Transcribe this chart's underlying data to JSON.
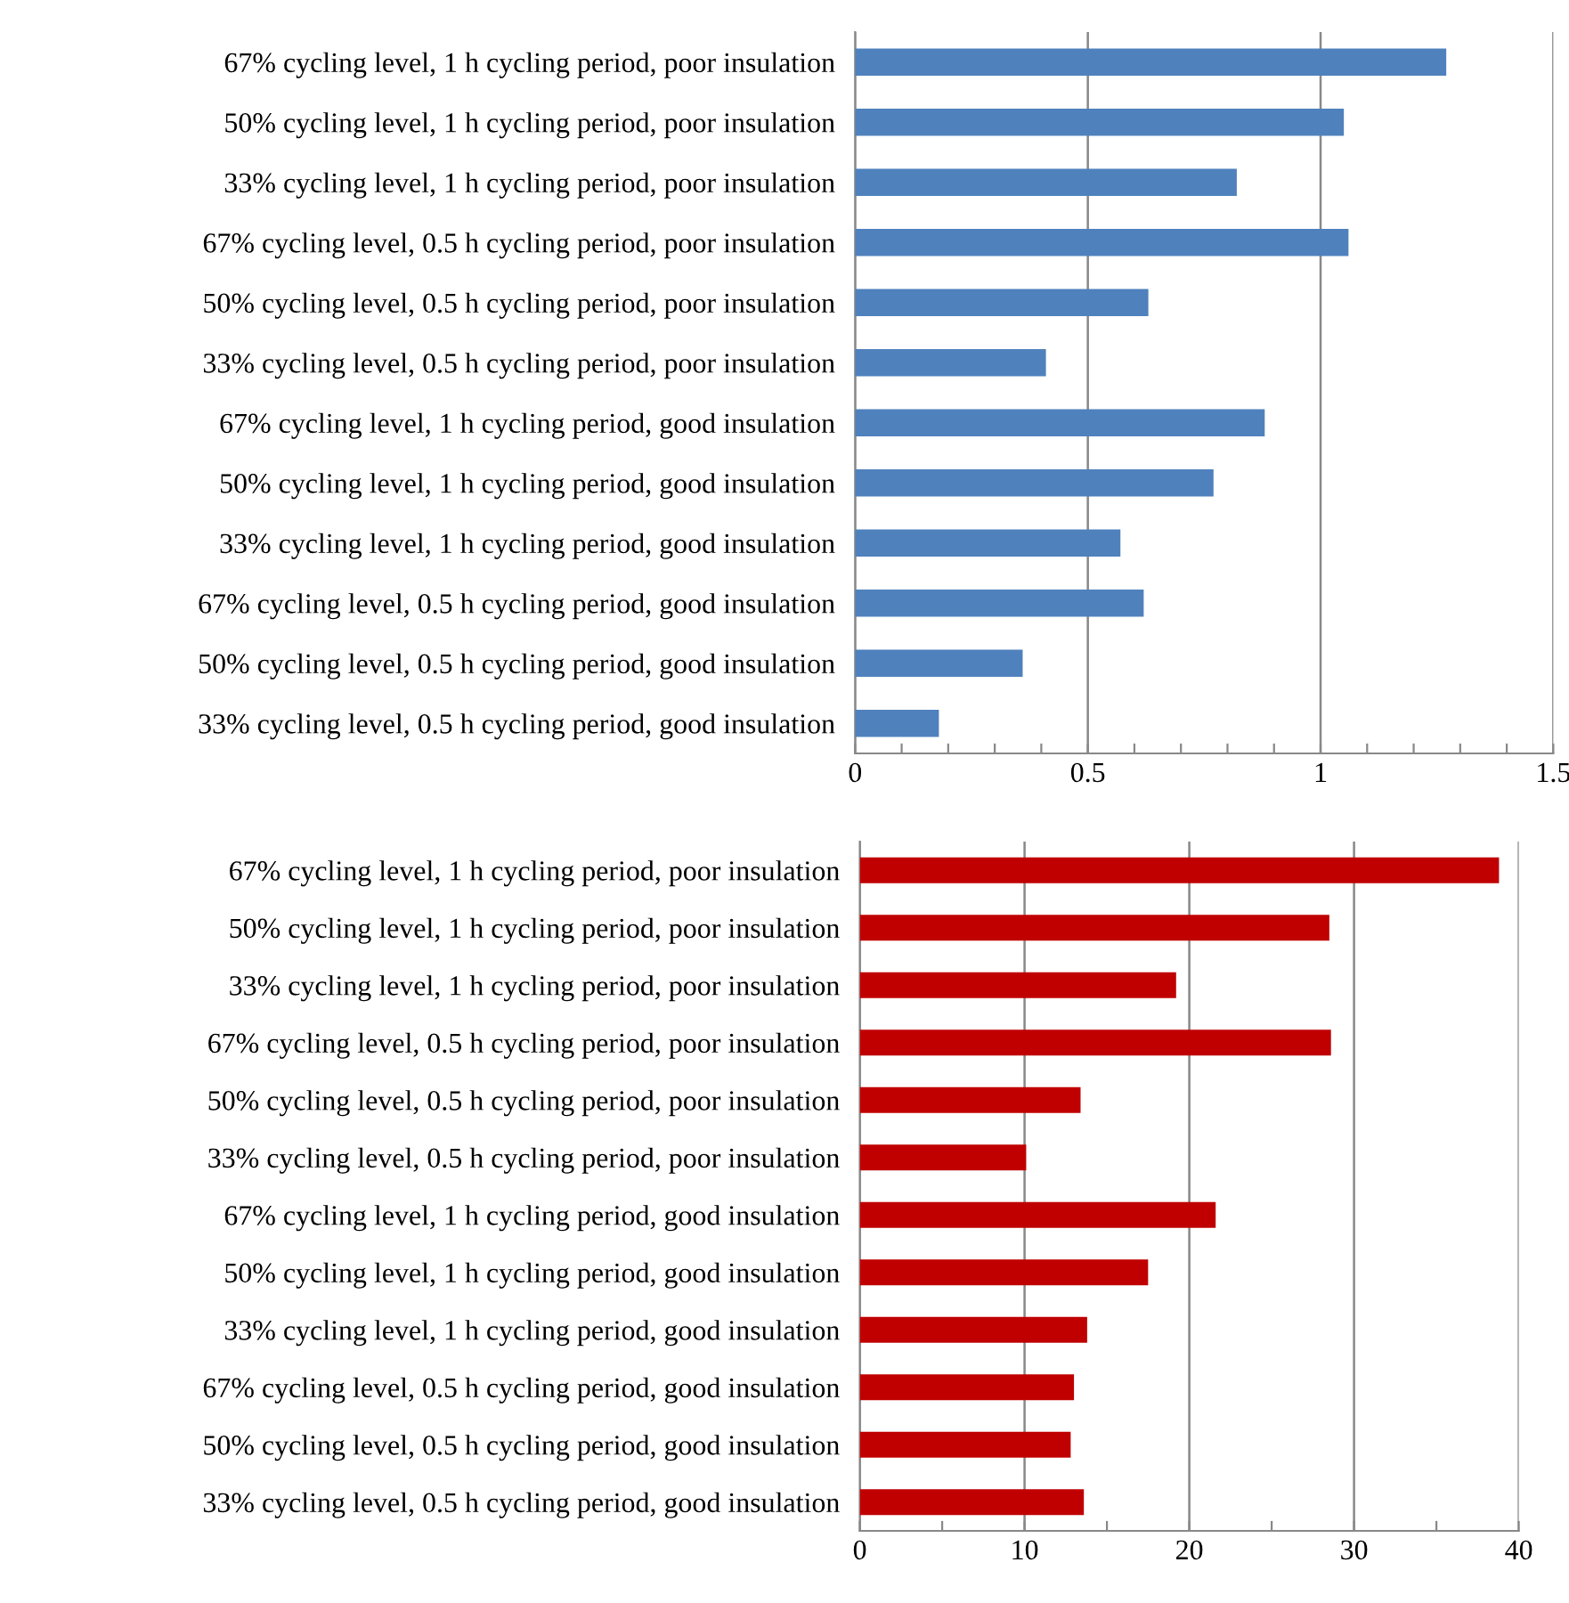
{
  "chart_data": [
    {
      "type": "bar",
      "orientation": "horizontal",
      "categories": [
        "67% cycling level, 1 h cycling period, poor insulation",
        "50% cycling level, 1 h cycling period, poor insulation",
        "33% cycling level, 1 h cycling period, poor insulation",
        "67% cycling level, 0.5 h cycling period, poor insulation",
        "50% cycling level, 0.5 h cycling period, poor insulation",
        "33% cycling level, 0.5 h cycling period, poor insulation",
        "67% cycling level, 1 h cycling period, good insulation",
        "50% cycling level, 1 h cycling period, good insulation",
        "33% cycling level, 1 h cycling period, good insulation",
        "67% cycling level, 0.5 h cycling period, good insulation",
        "50% cycling level, 0.5 h cycling period, good insulation",
        "33% cycling level, 0.5 h cycling period, good insulation"
      ],
      "series": [
        {
          "color": "#4f81bd",
          "values": [
            1.27,
            1.05,
            0.82,
            1.06,
            0.63,
            0.41,
            0.88,
            0.77,
            0.57,
            0.62,
            0.36,
            0.18
          ]
        }
      ],
      "xlim": [
        0,
        1.5
      ],
      "xticks": [
        0,
        {
          "value": 0.1,
          "label": null
        },
        {
          "value": 0.2,
          "label": null
        },
        {
          "value": 0.3,
          "label": null
        },
        {
          "value": 0.4,
          "label": null
        },
        0.5,
        {
          "value": 0.6,
          "label": null
        },
        {
          "value": 0.7,
          "label": null
        },
        {
          "value": 0.8,
          "label": null
        },
        {
          "value": 0.9,
          "label": null
        },
        1,
        {
          "value": 1.1,
          "label": null
        },
        {
          "value": 1.2,
          "label": null
        },
        {
          "value": 1.3,
          "label": null
        },
        {
          "value": 1.4,
          "label": null
        },
        1.5
      ],
      "grid": "x",
      "legend": false
    },
    {
      "type": "bar",
      "orientation": "horizontal",
      "categories": [
        "67% cycling level, 1 h cycling period, poor insulation",
        "50% cycling level, 1 h cycling period, poor insulation",
        "33% cycling level, 1 h cycling period, poor insulation",
        "67% cycling level, 0.5 h cycling period, poor insulation",
        "50% cycling level, 0.5 h cycling period, poor insulation",
        "33% cycling level, 0.5 h cycling period, poor insulation",
        "67% cycling level, 1 h cycling period, good insulation",
        "50% cycling level, 1 h cycling period, good insulation",
        "33% cycling level, 1 h cycling period, good insulation",
        "67% cycling level, 0.5 h cycling period, good insulation",
        "50% cycling level, 0.5 h cycling period, good insulation",
        "33% cycling level, 0.5 h cycling period, good insulation"
      ],
      "series": [
        {
          "color": "#c00000",
          "values": [
            38.8,
            28.5,
            19.2,
            28.6,
            13.4,
            10.1,
            21.6,
            17.5,
            13.8,
            13.0,
            12.8,
            13.6
          ]
        }
      ],
      "xlim": [
        0,
        40
      ],
      "xticks": [
        0,
        {
          "value": 5,
          "label": null
        },
        10,
        {
          "value": 15,
          "label": null
        },
        20,
        {
          "value": 25,
          "label": null
        },
        30,
        {
          "value": 35,
          "label": null
        },
        40
      ],
      "grid": "x",
      "legend": false
    }
  ]
}
